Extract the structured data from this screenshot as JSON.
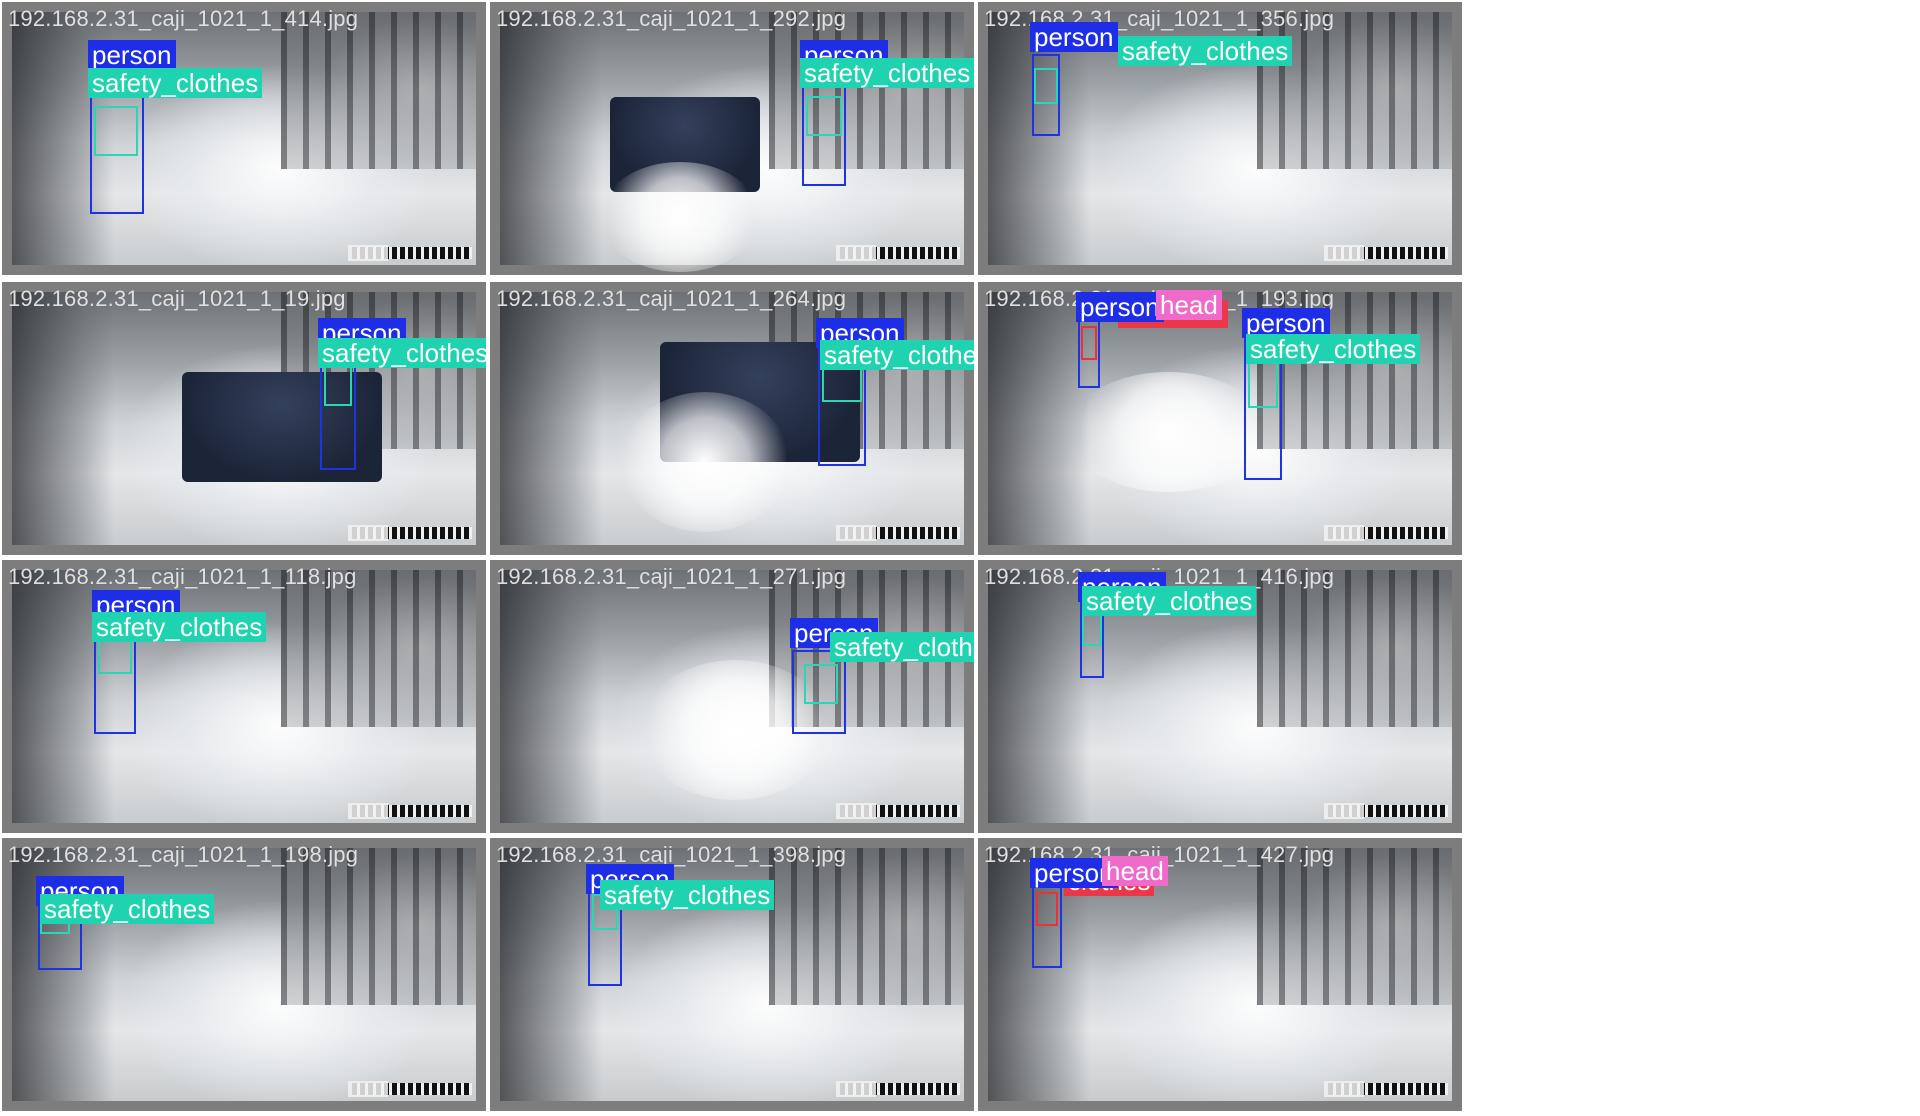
{
  "label_colors": {
    "person": "#1d2ee6",
    "safety_clothes": "#1fd3b0",
    "vest": "#e8384a",
    "head": "#f06ac9"
  },
  "tiles": [
    {
      "filename": "192.168.2.31_caji_1021_1_414.jpg",
      "labels": [
        "person",
        "safety_clothes"
      ]
    },
    {
      "filename": "192.168.2.31_caji_1021_1_292.jpg",
      "labels": [
        "person",
        "safety_clothes"
      ]
    },
    {
      "filename": "192.168.2.31_caji_1021_1_356.jpg",
      "labels": [
        "person",
        "safety_clothes"
      ]
    },
    {
      "filename": "192.168.2.31_caji_1021_1_19.jpg",
      "labels": [
        "person",
        "safety_clothes"
      ]
    },
    {
      "filename": "192.168.2.31_caji_1021_1_264.jpg",
      "labels": [
        "person",
        "safety_clothes"
      ]
    },
    {
      "filename": "192.168.2.31_caji_1021_1_193.jpg",
      "labels": [
        "person",
        "head",
        "person",
        "safety_clothes"
      ]
    },
    {
      "filename": "192.168.2.31_caji_1021_1_118.jpg",
      "labels": [
        "person",
        "safety_clothes"
      ]
    },
    {
      "filename": "192.168.2.31_caji_1021_1_271.jpg",
      "labels": [
        "person",
        "safety_clothes"
      ]
    },
    {
      "filename": "192.168.2.31_caji_1021_1_416.jpg",
      "labels": [
        "person",
        "safety_clothes"
      ]
    },
    {
      "filename": "192.168.2.31_caji_1021_1_198.jpg",
      "labels": [
        "person",
        "safety_clothes"
      ]
    },
    {
      "filename": "192.168.2.31_caji_1021_1_398.jpg",
      "labels": [
        "person",
        "safety_clothes"
      ]
    },
    {
      "filename": "192.168.2.31_caji_1021_1_427.jpg",
      "labels": [
        "person",
        "head",
        "clothes"
      ]
    }
  ]
}
